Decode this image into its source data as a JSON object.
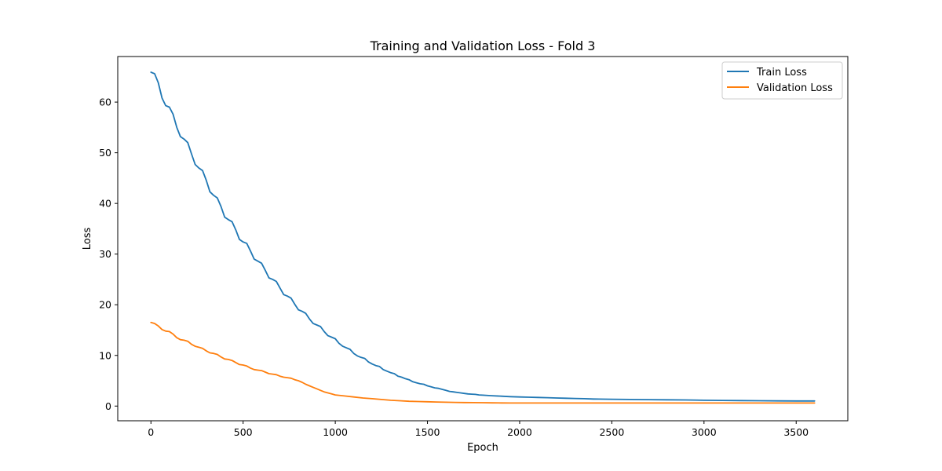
{
  "chart_data": {
    "type": "line",
    "title": "Training and Validation Loss - Fold 3",
    "xlabel": "Epoch",
    "ylabel": "Loss",
    "xlim": [
      -180,
      3780
    ],
    "ylim": [
      -2.9,
      69.0
    ],
    "xticks": [
      0,
      500,
      1000,
      1500,
      2000,
      2500,
      3000,
      3500
    ],
    "yticks": [
      0,
      10,
      20,
      30,
      40,
      50,
      60
    ],
    "grid": false,
    "legend_position": "top-right",
    "series": [
      {
        "name": "Train Loss",
        "color": "#1f77b4",
        "x": [
          0,
          20,
          40,
          60,
          80,
          100,
          120,
          140,
          160,
          180,
          200,
          220,
          240,
          260,
          280,
          300,
          320,
          340,
          360,
          380,
          400,
          420,
          440,
          460,
          480,
          500,
          520,
          540,
          560,
          580,
          600,
          620,
          640,
          660,
          680,
          700,
          720,
          740,
          760,
          780,
          800,
          820,
          840,
          860,
          880,
          900,
          920,
          940,
          960,
          980,
          1000,
          1020,
          1040,
          1060,
          1080,
          1100,
          1120,
          1140,
          1160,
          1180,
          1200,
          1220,
          1240,
          1260,
          1280,
          1300,
          1320,
          1340,
          1360,
          1380,
          1400,
          1420,
          1440,
          1460,
          1480,
          1500,
          1520,
          1540,
          1560,
          1580,
          1600,
          1620,
          1640,
          1660,
          1680,
          1700,
          1720,
          1740,
          1760,
          1780,
          1800,
          1850,
          1900,
          1950,
          2000,
          2050,
          2100,
          2150,
          2200,
          2250,
          2300,
          2350,
          2400,
          2500,
          2600,
          2700,
          2800,
          2900,
          3000,
          3100,
          3200,
          3300,
          3400,
          3500,
          3600
        ],
        "y": [
          65.9,
          65.6,
          63.8,
          60.8,
          59.3,
          59.0,
          57.6,
          55.0,
          53.2,
          52.7,
          52.0,
          49.8,
          47.7,
          47.0,
          46.5,
          44.6,
          42.3,
          41.6,
          41.1,
          39.4,
          37.3,
          36.8,
          36.4,
          34.8,
          32.9,
          32.4,
          32.1,
          30.6,
          29.0,
          28.6,
          28.2,
          26.8,
          25.3,
          25.0,
          24.6,
          23.3,
          22.0,
          21.7,
          21.3,
          20.1,
          19.0,
          18.7,
          18.3,
          17.2,
          16.3,
          16.0,
          15.7,
          14.7,
          13.9,
          13.6,
          13.3,
          12.4,
          11.8,
          11.5,
          11.2,
          10.4,
          9.9,
          9.6,
          9.4,
          8.7,
          8.3,
          8.0,
          7.8,
          7.2,
          6.9,
          6.6,
          6.4,
          5.9,
          5.7,
          5.4,
          5.2,
          4.8,
          4.6,
          4.4,
          4.3,
          4.0,
          3.8,
          3.6,
          3.5,
          3.3,
          3.1,
          2.9,
          2.8,
          2.7,
          2.6,
          2.5,
          2.4,
          2.35,
          2.3,
          2.2,
          2.15,
          2.05,
          1.95,
          1.85,
          1.8,
          1.75,
          1.7,
          1.65,
          1.6,
          1.55,
          1.5,
          1.45,
          1.4,
          1.35,
          1.3,
          1.27,
          1.24,
          1.2,
          1.15,
          1.12,
          1.08,
          1.05,
          1.02,
          1.0,
          1.0
        ]
      },
      {
        "name": "Validation Loss",
        "color": "#ff7f0e",
        "x": [
          0,
          20,
          40,
          60,
          80,
          100,
          120,
          140,
          160,
          180,
          200,
          220,
          240,
          260,
          280,
          300,
          320,
          340,
          360,
          380,
          400,
          420,
          440,
          460,
          480,
          500,
          520,
          540,
          560,
          580,
          600,
          620,
          640,
          660,
          680,
          700,
          720,
          740,
          760,
          780,
          800,
          820,
          840,
          860,
          880,
          900,
          920,
          940,
          960,
          980,
          1000,
          1050,
          1100,
          1150,
          1200,
          1250,
          1300,
          1350,
          1400,
          1450,
          1500,
          1550,
          1600,
          1650,
          1700,
          1750,
          1800,
          1850,
          1900,
          1950,
          2000,
          2100,
          2200,
          2300,
          2400,
          2500,
          2600,
          2700,
          2800,
          2900,
          3000,
          3100,
          3200,
          3300,
          3400,
          3500,
          3600
        ],
        "y": [
          16.5,
          16.3,
          15.8,
          15.1,
          14.8,
          14.7,
          14.2,
          13.5,
          13.1,
          13.0,
          12.8,
          12.2,
          11.8,
          11.6,
          11.4,
          10.9,
          10.5,
          10.4,
          10.2,
          9.7,
          9.3,
          9.2,
          9.0,
          8.6,
          8.2,
          8.1,
          7.9,
          7.5,
          7.2,
          7.1,
          7.0,
          6.7,
          6.4,
          6.3,
          6.2,
          5.9,
          5.7,
          5.6,
          5.5,
          5.2,
          5.0,
          4.7,
          4.3,
          4.0,
          3.7,
          3.4,
          3.1,
          2.8,
          2.6,
          2.4,
          2.2,
          2.0,
          1.8,
          1.6,
          1.45,
          1.3,
          1.15,
          1.05,
          0.95,
          0.9,
          0.85,
          0.8,
          0.75,
          0.72,
          0.7,
          0.68,
          0.66,
          0.64,
          0.62,
          0.6,
          0.6,
          0.6,
          0.6,
          0.6,
          0.6,
          0.6,
          0.6,
          0.6,
          0.6,
          0.6,
          0.6,
          0.6,
          0.6,
          0.6,
          0.6,
          0.6,
          0.6
        ]
      }
    ]
  }
}
